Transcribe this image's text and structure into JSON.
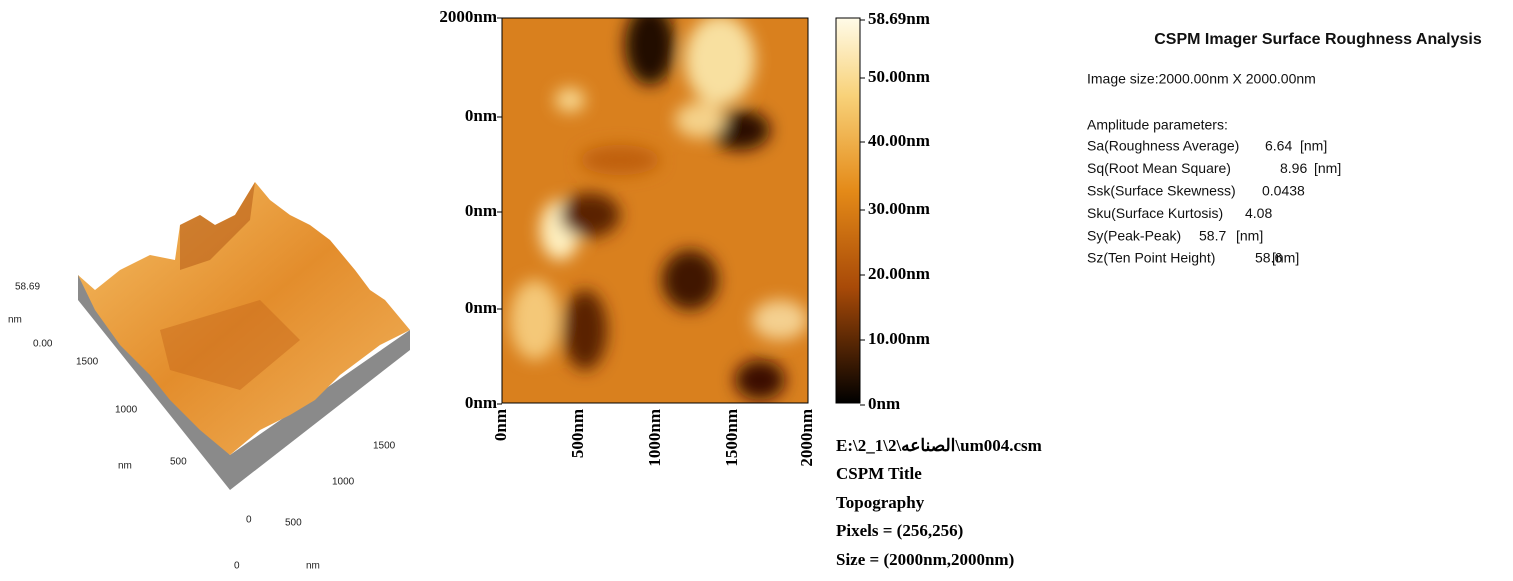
{
  "surface_3d": {
    "z_max": "58.69",
    "z_unit": "nm",
    "z_min": "0.00",
    "left_axis": [
      "1500",
      "1000",
      "nm",
      "500"
    ],
    "right_axis": [
      "1500",
      "1000",
      "0",
      "500"
    ],
    "bottom": [
      "0",
      "nm"
    ]
  },
  "image_2d": {
    "y_ticks": [
      "2000nm",
      "0nm",
      "0nm",
      "0nm",
      "0nm"
    ],
    "x_ticks": [
      "0nm",
      "500nm",
      "1000nm",
      "1500nm",
      "2000nm"
    ]
  },
  "colorbar": {
    "labels": [
      "58.69nm",
      "50.00nm",
      "40.00nm",
      "30.00nm",
      "20.00nm",
      "10.00nm",
      "0nm"
    ]
  },
  "file_info": [
    "E:\\2_1\\2\\الصناعه\\um004.csm",
    "CSPM Title",
    "Topography",
    "Pixels = (256,256)",
    "Size = (2000nm,2000nm)"
  ],
  "analysis": {
    "title": "CSPM Imager Surface Roughness Analysis",
    "image_size": "Image size:2000.00nm X 2000.00nm",
    "heading": "Amplitude parameters:",
    "params": [
      {
        "name": "Sa(Roughness Average)",
        "value": "6.64",
        "unit": "[nm]"
      },
      {
        "name": "Sq(Root Mean Square)",
        "value": "8.96",
        "unit": "[nm]"
      },
      {
        "name": "Ssk(Surface Skewness)",
        "value": "0.0438"
      },
      {
        "name": "Sku(Surface Kurtosis)",
        "value": "4.08"
      },
      {
        "name": "Sy(Peak-Peak)",
        "value": "58.7",
        "unit": "[nm]"
      },
      {
        "name": "Sz(Ten Point Height)",
        "value": "58.6",
        "unit": "[nm]"
      }
    ]
  }
}
